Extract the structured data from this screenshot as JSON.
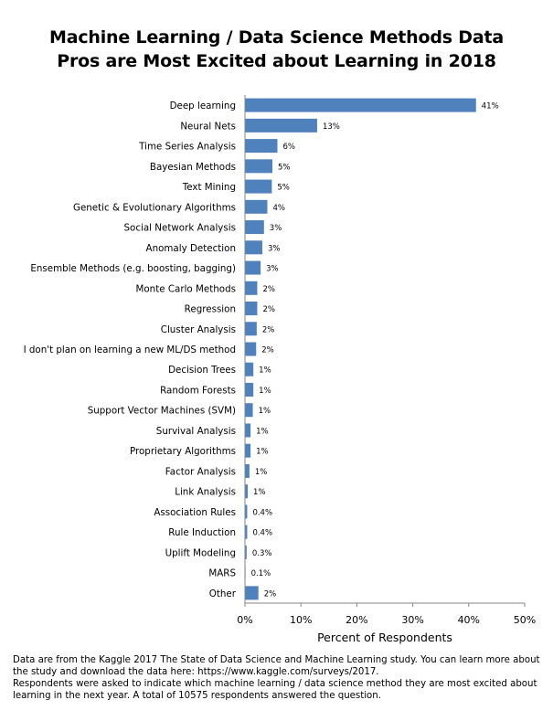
{
  "title_line1": "Machine Learning / Data Science Methods Data",
  "title_line2": "Pros are Most Excited about Learning in 2018",
  "chart_data": {
    "type": "bar",
    "orientation": "horizontal",
    "xlabel": "Percent of Respondents",
    "xlim": [
      0,
      50
    ],
    "xticks": [
      "0%",
      "10%",
      "20%",
      "30%",
      "40%",
      "50%"
    ],
    "bar_color": "#4f81bd",
    "categories": [
      "Deep learning",
      "Neural Nets",
      "Time Series Analysis",
      "Bayesian Methods",
      "Text Mining",
      "Genetic & Evolutionary Algorithms",
      "Social Network Analysis",
      "Anomaly Detection",
      "Ensemble Methods (e.g. boosting, bagging)",
      "Monte Carlo Methods",
      "Regression",
      "Cluster Analysis",
      "I don't plan on learning a new ML/DS method",
      "Decision Trees",
      "Random Forests",
      "Support Vector Machines (SVM)",
      "Survival Analysis",
      "Proprietary Algorithms",
      "Factor Analysis",
      "Link Analysis",
      "Association Rules",
      "Rule Induction",
      "Uplift Modeling",
      "MARS",
      "Other"
    ],
    "values": [
      41.3,
      12.9,
      5.8,
      4.9,
      4.8,
      4.0,
      3.4,
      3.1,
      2.8,
      2.2,
      2.2,
      2.1,
      2.0,
      1.5,
      1.5,
      1.4,
      1.0,
      1.0,
      0.8,
      0.5,
      0.4,
      0.4,
      0.3,
      0.1,
      2.4
    ],
    "data_labels": [
      "41%",
      "13%",
      "6%",
      "5%",
      "5%",
      "4%",
      "3%",
      "3%",
      "3%",
      "2%",
      "2%",
      "2%",
      "2%",
      "1%",
      "1%",
      "1%",
      "1%",
      "1%",
      "1%",
      "1%",
      "0.4%",
      "0.4%",
      "0.3%",
      "0.1%",
      "2%"
    ]
  },
  "footnote": {
    "line1": "Data are from the Kaggle 2017 The State of Data Science and Machine Learning study. You can learn more about",
    "line2": "the study and download the data here:  https://www.kaggle.com/surveys/2017.",
    "line3": "Respondents were asked  to indicate which machine learning / data science method they are most excited about",
    "line4": "learning in the next year. A total of 10575 respondents answered the question."
  }
}
